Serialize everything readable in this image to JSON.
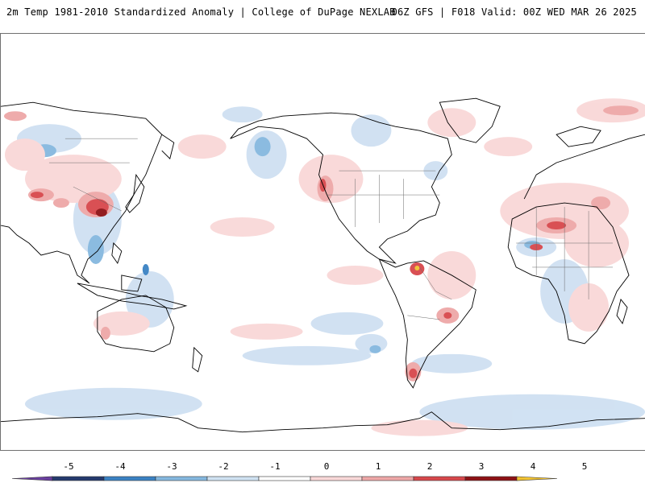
{
  "header": {
    "left_title": "2m Temp 1981-2010 Standardized Anomaly | College of DuPage NEXLAB",
    "right_title": "06Z GFS | F018 Valid: 00Z WED MAR 26 2025"
  },
  "legend": {
    "tick_labels": [
      "-5",
      "-4",
      "-3",
      "-2",
      "-1",
      "0",
      "1",
      "2",
      "3",
      "4",
      "5"
    ],
    "bins": [
      {
        "color": "#6a3fa0"
      },
      {
        "color": "#253a6e"
      },
      {
        "color": "#3b82c4"
      },
      {
        "color": "#85b8df"
      },
      {
        "color": "#cfe2f2"
      },
      {
        "color": "#ffffff"
      },
      {
        "color": "#f9d8d8"
      },
      {
        "color": "#eea7a7"
      },
      {
        "color": "#d7474b"
      },
      {
        "color": "#8e1216"
      },
      {
        "color": "#f1c232"
      }
    ]
  },
  "map": {
    "projection": "equirectangular, Pacific-centered",
    "colors": {
      "land_outline": "#000000",
      "border": "#8a8a8a",
      "warm": "#f6cdcd",
      "cold": "#cfe0f2"
    }
  }
}
